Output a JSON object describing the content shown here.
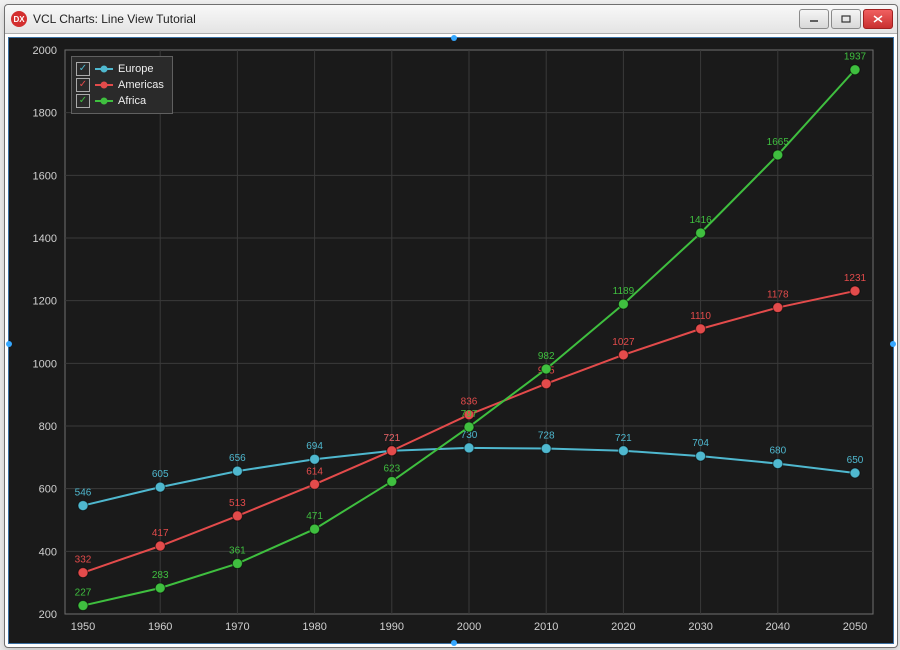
{
  "window": {
    "title": "VCL Charts: Line View Tutorial",
    "icon_label": "DX"
  },
  "chart": {
    "type": "line",
    "background_color": "#1a1a1a",
    "plot_border_color": "#707070",
    "grid_color": "#3a3a3a",
    "axis_text_color": "#d0d0d0",
    "axis_fontsize": 11,
    "label_fontsize": 10,
    "x": {
      "categories": [
        1950,
        1960,
        1970,
        1980,
        1990,
        2000,
        2010,
        2020,
        2030,
        2040,
        2050
      ],
      "min": 1950,
      "max": 2050
    },
    "y": {
      "min": 200,
      "max": 2000,
      "step": 200
    },
    "legend": {
      "position": "top-left",
      "background": "#2a2a2a",
      "border": "#606060",
      "items": [
        {
          "label": "Europe",
          "color": "#4fb8cf",
          "checked": true,
          "check_color": "#4fb8cf"
        },
        {
          "label": "Americas",
          "color": "#e34b4b",
          "checked": true,
          "check_color": "#e34b4b"
        },
        {
          "label": "Africa",
          "color": "#3fbf3f",
          "checked": true,
          "check_color": "#3fbf3f"
        }
      ]
    },
    "series": [
      {
        "name": "Europe",
        "color": "#4fb8cf",
        "line_width": 2,
        "marker": "circle",
        "marker_size": 5,
        "values": [
          546,
          605,
          656,
          694,
          721,
          730,
          728,
          721,
          704,
          680,
          650
        ]
      },
      {
        "name": "Americas",
        "color": "#e34b4b",
        "line_width": 2,
        "marker": "circle",
        "marker_size": 5,
        "values": [
          332,
          417,
          513,
          614,
          721,
          836,
          935,
          1027,
          1110,
          1178,
          1231
        ],
        "label_overrides": {
          "2000": "836",
          "2010": "935"
        }
      },
      {
        "name": "Africa",
        "color": "#3fbf3f",
        "line_width": 2,
        "marker": "circle",
        "marker_size": 5,
        "values": [
          227,
          283,
          361,
          471,
          623,
          797,
          982,
          1189,
          1416,
          1665,
          1937
        ]
      }
    ],
    "marker_edge_color": "#0e3b0e"
  }
}
